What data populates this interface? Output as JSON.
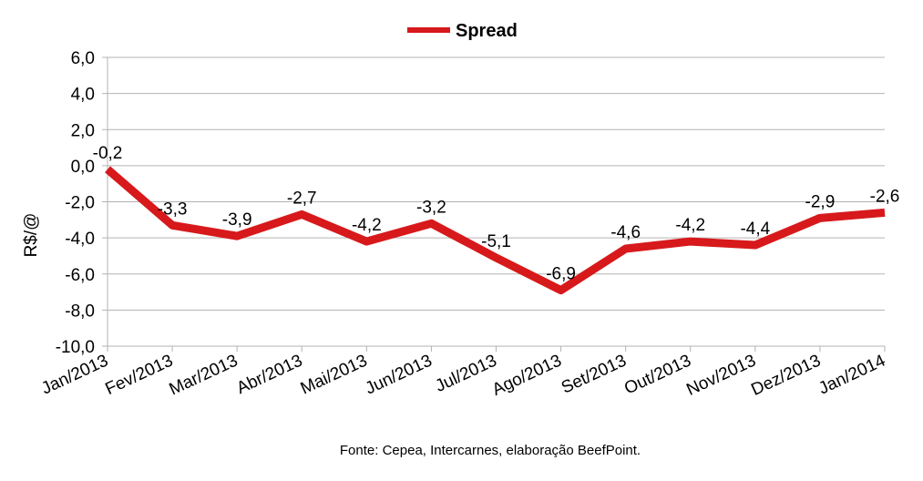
{
  "chart_data": {
    "type": "line",
    "categories": [
      "Jan/2013",
      "Fev/2013",
      "Mar/2013",
      "Abr/2013",
      "Mai/2013",
      "Jun/2013",
      "Jul/2013",
      "Ago/2013",
      "Set/2013",
      "Out/2013",
      "Nov/2013",
      "Dez/2013",
      "Jan/2014"
    ],
    "series": [
      {
        "name": "Spread",
        "values": [
          -0.2,
          -3.3,
          -3.9,
          -2.7,
          -4.2,
          -3.2,
          -5.1,
          -6.9,
          -4.6,
          -4.2,
          -4.4,
          -2.9,
          -2.6
        ],
        "labels": [
          "-0,2",
          "-3,3",
          "-3,9",
          "-2,7",
          "-4,2",
          "-3,2",
          "-5,1",
          "-6,9",
          "-4,6",
          "-4,2",
          "-4,4",
          "-2,9",
          "-2,6"
        ],
        "color": "#d7191c"
      }
    ],
    "ylabel": "R$/@",
    "xlabel": "",
    "ylim": [
      -10,
      6
    ],
    "yticks": [
      -10,
      -8,
      -6,
      -4,
      -2,
      0,
      2,
      4,
      6
    ],
    "ytick_labels": [
      "-10,0",
      "-8,0",
      "-6,0",
      "-4,0",
      "-2,0",
      "0,0",
      "2,0",
      "4,0",
      "6,0"
    ],
    "grid": true,
    "legend_position": "top-center",
    "grid_color": "#b3b3b3",
    "axis_color": "#b3b3b3"
  },
  "source": "Fonte: Cepea, Intercarnes, elaboração BeefPoint."
}
